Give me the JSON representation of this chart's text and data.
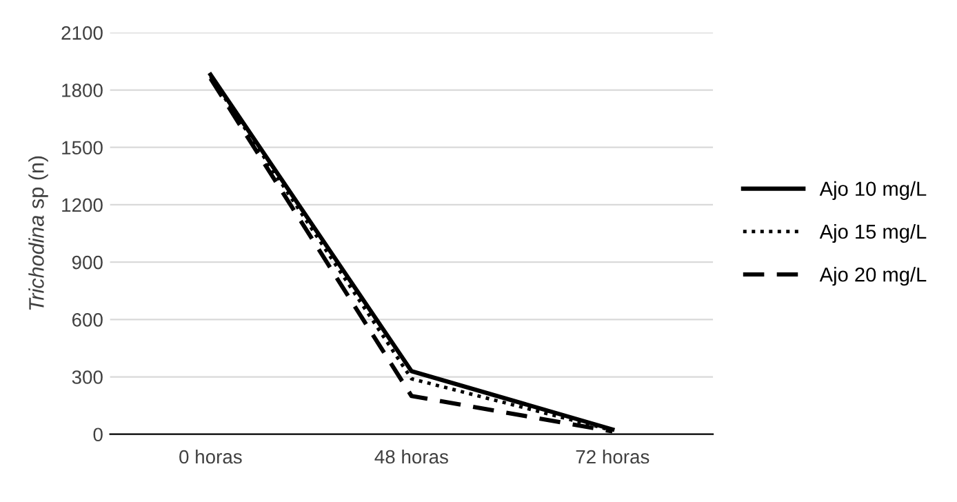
{
  "chart_data": {
    "type": "line",
    "ylabel": "Trichodina sp (n)",
    "categories": [
      "0 horas",
      "48 horas",
      "72 horas"
    ],
    "series": [
      {
        "name": "Ajo 10 mg/L",
        "color": "#000000",
        "line_style": "solid",
        "values": [
          1880,
          330,
          25
        ]
      },
      {
        "name": "Ajo 15 mg/L",
        "color": "#000000",
        "line_style": "dotted",
        "values": [
          1870,
          290,
          20
        ]
      },
      {
        "name": "Ajo 20 mg/L",
        "color": "#000000",
        "line_style": "dashed",
        "values": [
          1860,
          200,
          15
        ]
      }
    ],
    "ylim": [
      0,
      2100
    ],
    "yticks": [
      0,
      300,
      600,
      900,
      1200,
      1500,
      1800,
      2100
    ],
    "grid": "y",
    "legend": "right",
    "marker": "none"
  }
}
